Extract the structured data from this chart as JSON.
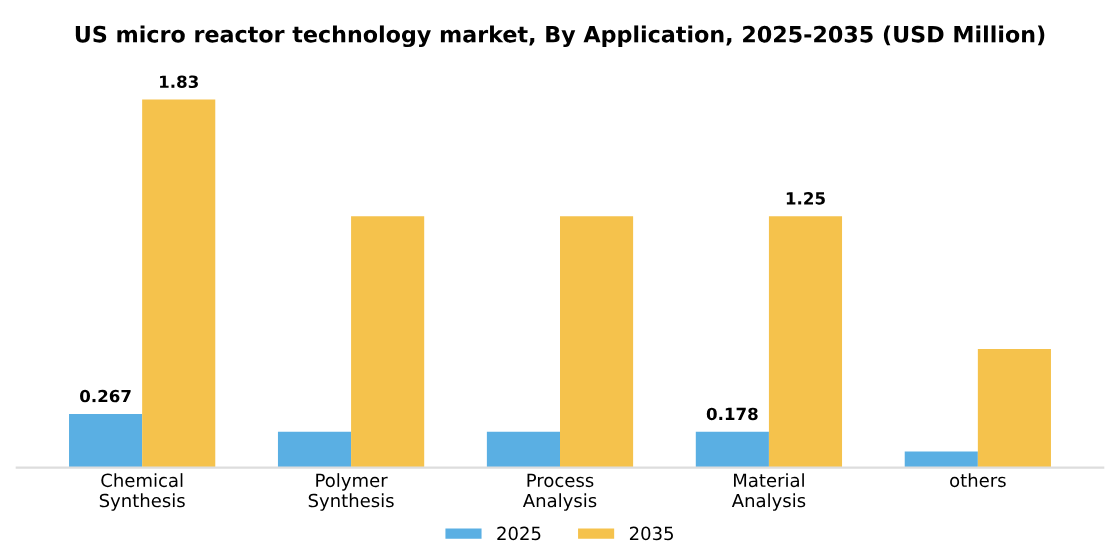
{
  "chart_data": {
    "type": "bar",
    "title": "US micro reactor technology market, By Application, 2025-2035 (USD Million)",
    "categories": [
      "Chemical\nSynthesis",
      "Polymer\nSynthesis",
      "Process\nAnalysis",
      "Material\nAnalysis",
      "others"
    ],
    "series": [
      {
        "name": "2025",
        "color": "#5aafe3",
        "values": [
          0.267,
          0.178,
          0.178,
          0.178,
          0.08
        ],
        "value_labels": [
          "0.267",
          null,
          null,
          "0.178",
          null
        ]
      },
      {
        "name": "2035",
        "color": "#f5c24c",
        "values": [
          1.83,
          1.25,
          1.25,
          1.25,
          0.59
        ],
        "value_labels": [
          "1.83",
          null,
          null,
          "1.25",
          null
        ]
      }
    ],
    "legend": "bottom",
    "grid": false
  }
}
